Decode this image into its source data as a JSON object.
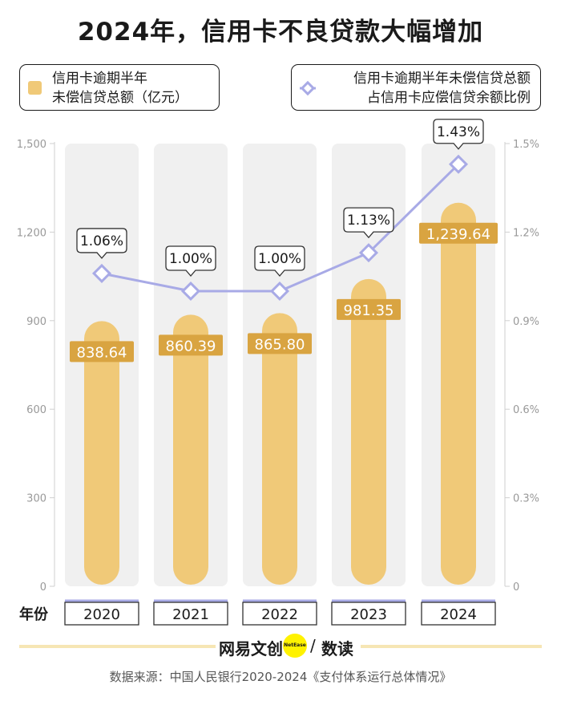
{
  "title": "2024年，信用卡不良贷款大幅增加",
  "legend": {
    "bar_line1": "信用卡逾期半年",
    "bar_line2": "未偿信贷总额（亿元）",
    "line_line1": "信用卡逾期半年未偿信贷总额",
    "line_line2": "占信用卡应偿信贷余额比例"
  },
  "x_axis_title": "年份",
  "chart_data": {
    "type": "bar",
    "categories": [
      "2020",
      "2021",
      "2022",
      "2023",
      "2024"
    ],
    "series": [
      {
        "name": "信用卡逾期半年未偿信贷总额（亿元）",
        "type": "bar",
        "axis": "left",
        "values": [
          838.64,
          860.39,
          865.8,
          981.35,
          1239.64
        ],
        "labels": [
          "838.64",
          "860.39",
          "865.80",
          "981.35",
          "1,239.64"
        ]
      },
      {
        "name": "信用卡逾期半年未偿信贷总额占信用卡应偿信贷余额比例",
        "type": "line",
        "axis": "right",
        "values": [
          1.06,
          1.0,
          1.0,
          1.13,
          1.43
        ],
        "labels": [
          "1.06%",
          "1.00%",
          "1.00%",
          "1.13%",
          "1.43%"
        ]
      }
    ],
    "y_left": {
      "ylim": [
        0,
        1500
      ],
      "ticks": [
        0,
        300,
        600,
        900,
        1200,
        1500
      ],
      "tick_labels": [
        "0",
        "300",
        "600",
        "900",
        "1,200",
        "1,500"
      ]
    },
    "y_right": {
      "ylim": [
        0,
        1.5
      ],
      "ticks": [
        0,
        0.3,
        0.6,
        0.9,
        1.2,
        1.5
      ],
      "tick_labels": [
        "0",
        "0.3%",
        "0.6%",
        "0.9%",
        "1.2%",
        "1.5%"
      ]
    },
    "grid": false,
    "colors": {
      "bar": "#f0c978",
      "bar_track": "#f0f0f0",
      "label_bg": "#d9a441",
      "line": "#a8aae6",
      "marker_fill": "#ffffff"
    }
  },
  "brand": {
    "name": "网易文创",
    "circle": "NetEase",
    "slash": "/",
    "sub": "数读"
  },
  "source": "数据来源：中国人民银行2020-2024《支付体系运行总体情况》"
}
